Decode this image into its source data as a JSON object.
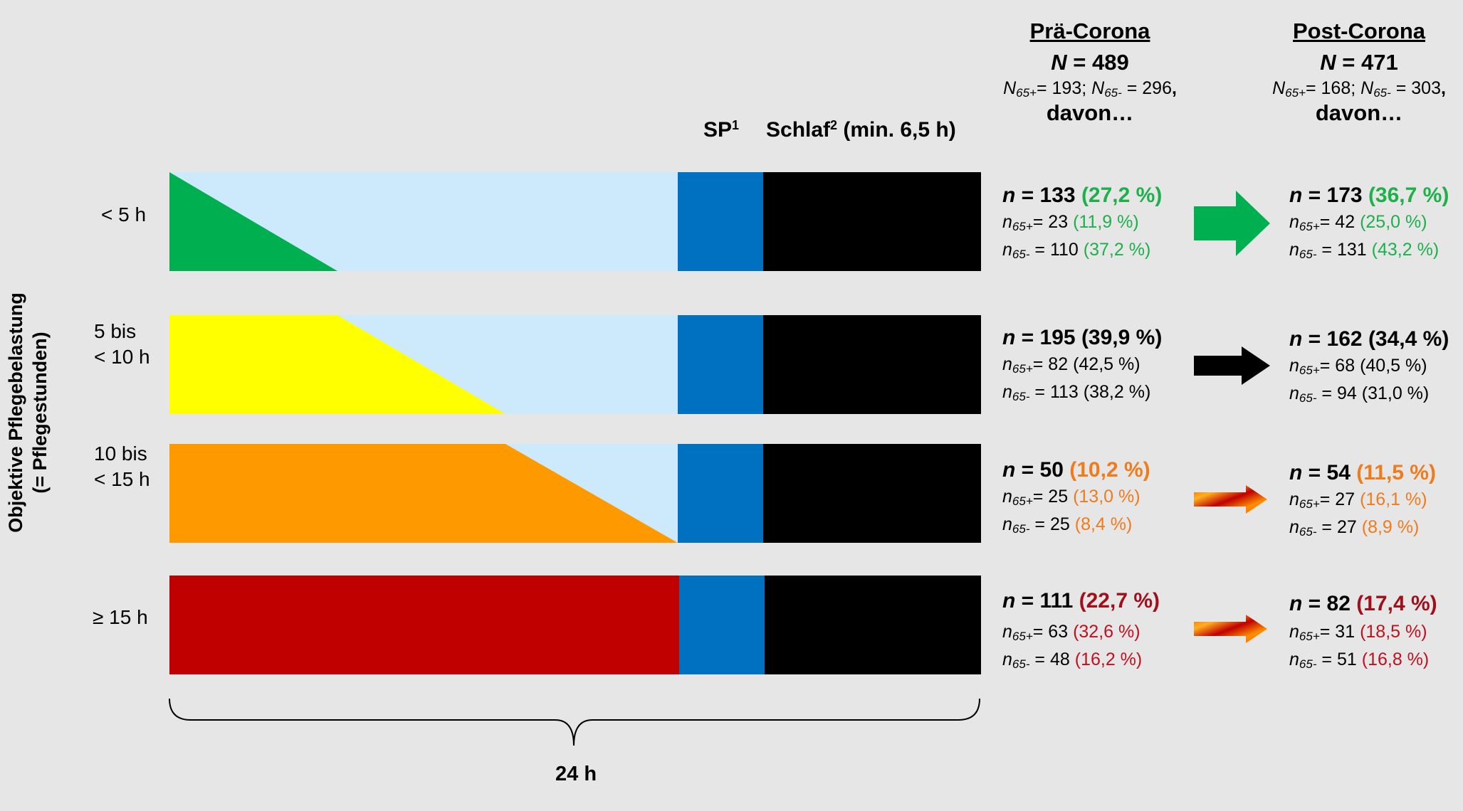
{
  "y_axis_label": {
    "line1": "Objektive Pflegebelastung",
    "line2": "(= Pflegestunden)"
  },
  "column_headers": {
    "sp": "SP",
    "sp_sup": "1",
    "schlaf": "Schlaf",
    "schlaf_sup": "2",
    "schlaf_rest": " (min. 6,5 h)"
  },
  "x_axis_label": "24 h",
  "colors": {
    "light_blue": "#cdeafc",
    "blue": "#0070c0",
    "black": "#000000",
    "green": "#00b050",
    "yellow": "#ffff00",
    "orange": "#ff9900",
    "red": "#c00000",
    "arrow_gradient_from": "#ff5a00",
    "arrow_gradient_to": "#c00000"
  },
  "pre": {
    "title": "Prä-Corona",
    "n_symbol": "N",
    "n_value": " = 489",
    "sub_a_label": "N",
    "sub_a_idx": "65+",
    "sub_a_val": "= 193; ",
    "sub_b_label": "N",
    "sub_b_idx": "65-",
    "sub_b_val": " = 296",
    "sub_comma": ",",
    "davon": "davon…"
  },
  "post": {
    "title": "Post-Corona",
    "n_symbol": "N",
    "n_value": " = 471",
    "sub_a_label": "N",
    "sub_a_idx": "65+",
    "sub_a_val": "= 168; ",
    "sub_b_label": "N",
    "sub_b_idx": "65-",
    "sub_b_val": " = 303",
    "sub_comma": ",",
    "davon": "davon…"
  },
  "rows": [
    {
      "label_line1": "< 5 h",
      "label_line2": "",
      "load_fraction": 0.34,
      "pre": {
        "n": "133",
        "pct": "(27,2 %)",
        "a_n": "23",
        "a_pct": "(11,9 %)",
        "b_n": "110",
        "b_pct": "(37,2 %)"
      },
      "post": {
        "n": "173",
        "pct": "(36,7 %)",
        "a_n": "42",
        "a_pct": "(25,0 %)",
        "b_n": "131",
        "b_pct": "(43,2 %)"
      },
      "arrow": "green"
    },
    {
      "label_line1": "5 bis",
      "label_line2": "< 10 h",
      "load_fraction": 0.51,
      "pre": {
        "n": "195",
        "pct": "(39,9 %)",
        "a_n": "82",
        "a_pct": "(42,5 %)",
        "b_n": "113",
        "b_pct": "(38,2 %)"
      },
      "post": {
        "n": "162",
        "pct": "(34,4 %)",
        "a_n": "68",
        "a_pct": "(40,5 %)",
        "b_n": "94",
        "b_pct": "(31,0 %)"
      },
      "arrow": "black"
    },
    {
      "label_line1": "10 bis",
      "label_line2": "< 15 h",
      "load_fraction": 0.68,
      "pre": {
        "n": "50",
        "pct": "(10,2 %)",
        "a_n": "25",
        "a_pct": "(13,0 %)",
        "b_n": "25",
        "b_pct": "(8,4 %)"
      },
      "post": {
        "n": "54",
        "pct": "(11,5 %)",
        "a_n": "27",
        "a_pct": "(16,1 %)",
        "b_n": "27",
        "b_pct": "(8,9 %)"
      },
      "arrow": "gradient"
    },
    {
      "label_line1": "≥ 15 h",
      "label_line2": "",
      "load_fraction": 1.0,
      "pre": {
        "n": "111",
        "pct": "(22,7 %)",
        "a_n": "63",
        "a_pct": "(32,6 %)",
        "b_n": "48",
        "b_pct": "(16,2 %)"
      },
      "post": {
        "n": "82",
        "pct": "(17,4 %)",
        "a_n": "31",
        "a_pct": "(18,5 %)",
        "b_n": "51",
        "b_pct": "(16,8 %)"
      },
      "arrow": "gradient"
    }
  ],
  "symbols": {
    "n": "n",
    "eq": " = ",
    "idx_a": "65+",
    "idx_b": "65-",
    "eq_a": "= ",
    "eq_b": " = "
  }
}
